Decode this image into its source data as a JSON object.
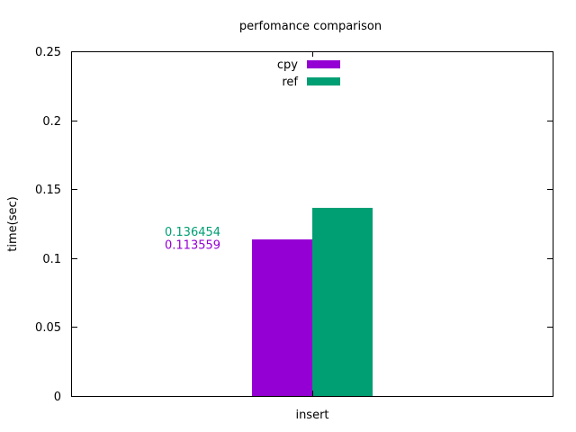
{
  "chart_data": {
    "type": "bar",
    "title": "perfomance comparison",
    "xlabel": "",
    "ylabel": "time(sec)",
    "categories": [
      "insert"
    ],
    "series": [
      {
        "name": "cpy",
        "color": "#9400d3",
        "values": [
          0.113559
        ]
      },
      {
        "name": "ref",
        "color": "#009e73",
        "values": [
          0.136454
        ]
      }
    ],
    "ylim": [
      0,
      0.25
    ],
    "yticks": [
      "0",
      "0.05",
      "0.1",
      "0.15",
      "0.2",
      "0.25"
    ],
    "grid": false,
    "legend_position": "top-center",
    "annotations": [
      {
        "text": "0.136454",
        "color": "#009e73"
      },
      {
        "text": "0.113559",
        "color": "#9400d3"
      }
    ]
  }
}
